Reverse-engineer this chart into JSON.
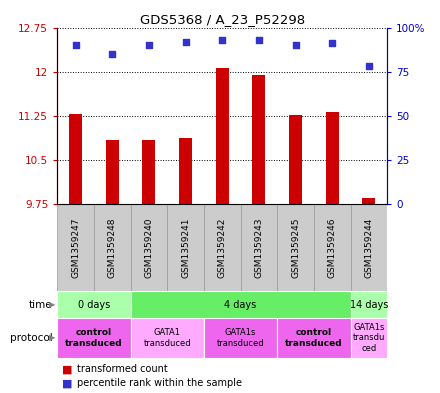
{
  "title": "GDS5368 / A_23_P52298",
  "samples": [
    "GSM1359247",
    "GSM1359248",
    "GSM1359240",
    "GSM1359241",
    "GSM1359242",
    "GSM1359243",
    "GSM1359245",
    "GSM1359246",
    "GSM1359244"
  ],
  "transformed_count": [
    11.28,
    10.85,
    10.85,
    10.88,
    12.07,
    11.95,
    11.27,
    11.32,
    9.85
  ],
  "percentile_rank": [
    90,
    85,
    90,
    92,
    93,
    93,
    90,
    91,
    78
  ],
  "ylim_left": [
    9.75,
    12.75
  ],
  "ylim_right": [
    0,
    100
  ],
  "yticks_left": [
    9.75,
    10.5,
    11.25,
    12.0,
    12.75
  ],
  "yticks_right": [
    0,
    25,
    50,
    75,
    100
  ],
  "ytick_labels_left": [
    "9.75",
    "10.5",
    "11.25",
    "12",
    "12.75"
  ],
  "ytick_labels_right": [
    "0",
    "25",
    "50",
    "75",
    "100%"
  ],
  "bar_color": "#cc0000",
  "dot_color": "#3333cc",
  "bar_bottom": 9.75,
  "time_groups": [
    {
      "label": "0 days",
      "start": 0,
      "end": 2,
      "color": "#aaffaa"
    },
    {
      "label": "4 days",
      "start": 2,
      "end": 8,
      "color": "#66ee66"
    },
    {
      "label": "14 days",
      "start": 8,
      "end": 9,
      "color": "#aaffaa"
    }
  ],
  "protocol_groups": [
    {
      "label": "control\ntransduced",
      "start": 0,
      "end": 2,
      "color": "#ee66ee",
      "bold": true
    },
    {
      "label": "GATA1\ntransduced",
      "start": 2,
      "end": 4,
      "color": "#ffaaff",
      "bold": false
    },
    {
      "label": "GATA1s\ntransduced",
      "start": 4,
      "end": 6,
      "color": "#ee66ee",
      "bold": false
    },
    {
      "label": "control\ntransduced",
      "start": 6,
      "end": 8,
      "color": "#ee66ee",
      "bold": true
    },
    {
      "label": "GATA1s\ntransdu\nced",
      "start": 8,
      "end": 9,
      "color": "#ffaaff",
      "bold": false
    }
  ],
  "legend_red_label": "transformed count",
  "legend_blue_label": "percentile rank within the sample",
  "left_tick_color": "#cc0000",
  "right_tick_color": "#0000cc",
  "sample_box_color": "#cccccc",
  "sample_box_edge": "#999999"
}
